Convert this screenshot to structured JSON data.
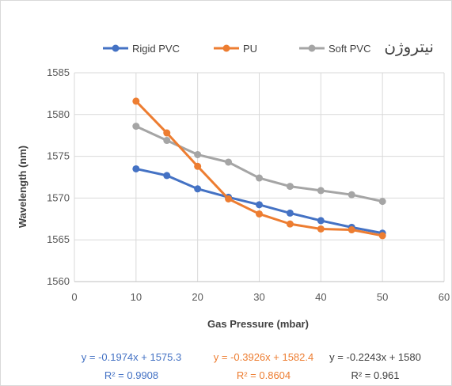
{
  "chart_data": {
    "type": "line",
    "title": "نیتروژن",
    "xlabel": "Gas Pressure (mbar)",
    "ylabel": "Wavelength (nm)",
    "xlim": [
      0,
      60
    ],
    "ylim": [
      1560,
      1585
    ],
    "x_ticks": [
      "0",
      "10",
      "20",
      "30",
      "40",
      "50",
      "60"
    ],
    "y_ticks": [
      "1560",
      "1565",
      "1570",
      "1575",
      "1580",
      "1585"
    ],
    "grid": true,
    "legend_position": "top",
    "x": [
      10,
      15,
      20,
      25,
      30,
      35,
      40,
      45,
      50
    ],
    "series": [
      {
        "name": "Rigid PVC",
        "color": "#4472c4",
        "values": [
          1573.5,
          1572.7,
          1571.1,
          1570.1,
          1569.2,
          1568.2,
          1567.3,
          1566.5,
          1565.8
        ],
        "equation": "y = -0.1974x + 1575.3",
        "r2": "R² = 0.9908"
      },
      {
        "name": "PU",
        "color": "#ed7d31",
        "values": [
          1581.6,
          1577.8,
          1573.8,
          1569.9,
          1568.1,
          1566.9,
          1566.3,
          1566.2,
          1565.5
        ],
        "equation": "y = -0.3926x + 1582.4",
        "r2": "R² = 0.8604"
      },
      {
        "name": "Soft PVC",
        "color": "#a5a5a5",
        "values": [
          1578.6,
          1576.9,
          1575.2,
          1574.3,
          1572.4,
          1571.4,
          1570.9,
          1570.4,
          1569.6
        ],
        "equation": "y = -0.2243x + 1580",
        "r2": "R² = 0.961"
      }
    ]
  },
  "colors": {
    "grid": "#d9d9d9",
    "axis": "#bfbfbf",
    "eq_rigid": "#4472c4",
    "eq_pu": "#ed7d31",
    "eq_soft": "#404040"
  }
}
